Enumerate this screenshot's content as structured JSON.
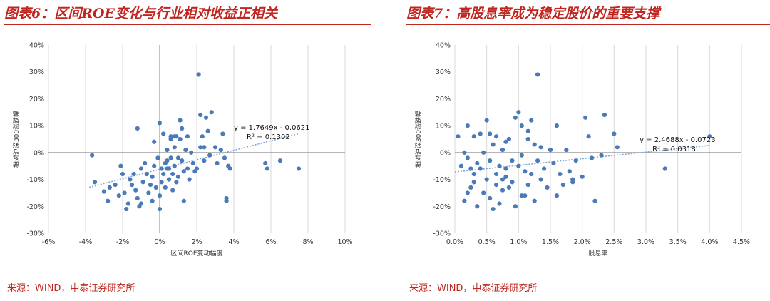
{
  "colors": {
    "accent": "#c0261f",
    "marker": "#4a7ab8",
    "trend": "#7fa6d4",
    "grid": "#d9d9d9"
  },
  "chart_data": [
    {
      "type": "scatter",
      "title": "图表6：区间ROE变化与行业相对收益正相关",
      "xlabel": "区间ROE变动幅度",
      "ylabel": "相对沪深300涨跌幅",
      "xlim": [
        -0.06,
        0.1
      ],
      "ylim": [
        -0.3,
        0.4
      ],
      "xticks": [
        "-6%",
        "-4%",
        "-2%",
        "0%",
        "2%",
        "4%",
        "6%",
        "8%",
        "10%"
      ],
      "yticks": [
        "-30%",
        "-20%",
        "-10%",
        "0%",
        "10%",
        "20%",
        "30%",
        "40%"
      ],
      "xtick_values": [
        -0.06,
        -0.04,
        -0.02,
        0,
        0.02,
        0.04,
        0.06,
        0.08,
        0.1
      ],
      "ytick_values": [
        -0.3,
        -0.2,
        -0.1,
        0,
        0.1,
        0.2,
        0.3,
        0.4
      ],
      "grid": "vertical",
      "trendline": {
        "slope": 1.7649,
        "intercept": -0.0621,
        "x_range": [
          -0.038,
          0.075
        ]
      },
      "equation": "y = 1.7649x - 0.0621",
      "r2": "R² = 0.1302",
      "source": "来源：WIND，中泰证券研究所",
      "points": [
        [
          -0.0365,
          -0.01
        ],
        [
          -0.035,
          -0.11
        ],
        [
          -0.03,
          -0.145
        ],
        [
          -0.028,
          -0.18
        ],
        [
          -0.027,
          -0.13
        ],
        [
          -0.024,
          -0.12
        ],
        [
          -0.022,
          -0.16
        ],
        [
          -0.021,
          -0.05
        ],
        [
          -0.02,
          -0.08
        ],
        [
          -0.019,
          -0.15
        ],
        [
          -0.018,
          -0.21
        ],
        [
          -0.017,
          -0.19
        ],
        [
          -0.016,
          -0.1
        ],
        [
          -0.015,
          -0.12
        ],
        [
          -0.014,
          -0.08
        ],
        [
          -0.013,
          -0.14
        ],
        [
          -0.012,
          -0.17
        ],
        [
          -0.011,
          -0.2
        ],
        [
          -0.01,
          -0.19
        ],
        [
          -0.01,
          -0.06
        ],
        [
          -0.009,
          -0.11
        ],
        [
          -0.008,
          -0.04
        ],
        [
          -0.007,
          -0.08
        ],
        [
          -0.006,
          -0.15
        ],
        [
          -0.005,
          -0.12
        ],
        [
          -0.004,
          -0.09
        ],
        [
          -0.004,
          -0.18
        ],
        [
          -0.003,
          -0.05
        ],
        [
          -0.002,
          -0.13
        ],
        [
          -0.001,
          -0.02
        ],
        [
          0.0,
          -0.16
        ],
        [
          0.0,
          -0.21
        ],
        [
          0.001,
          -0.06
        ],
        [
          0.001,
          -0.11
        ],
        [
          0.002,
          -0.08
        ],
        [
          0.002,
          0.07
        ],
        [
          0.003,
          -0.04
        ],
        [
          0.003,
          -0.13
        ],
        [
          0.004,
          -0.03
        ],
        [
          0.004,
          0.01
        ],
        [
          0.005,
          -0.1
        ],
        [
          0.005,
          -0.06
        ],
        [
          0.006,
          -0.02
        ],
        [
          0.006,
          0.06
        ],
        [
          0.007,
          -0.08
        ],
        [
          0.007,
          -0.14
        ],
        [
          0.008,
          0.02
        ],
        [
          0.008,
          -0.05
        ],
        [
          0.009,
          -0.11
        ],
        [
          0.009,
          0.06
        ],
        [
          0.01,
          -0.02
        ],
        [
          0.01,
          -0.09
        ],
        [
          0.011,
          0.12
        ],
        [
          0.011,
          0.05
        ],
        [
          0.012,
          -0.03
        ],
        [
          0.013,
          -0.07
        ],
        [
          0.013,
          -0.18
        ],
        [
          0.014,
          0.01
        ],
        [
          0.015,
          -0.06
        ],
        [
          0.016,
          -0.1
        ],
        [
          0.017,
          0.0
        ],
        [
          0.018,
          -0.04
        ],
        [
          0.019,
          -0.07
        ],
        [
          0.02,
          -0.06
        ],
        [
          0.021,
          0.29
        ],
        [
          0.022,
          0.02
        ],
        [
          0.023,
          0.06
        ],
        [
          0.024,
          -0.03
        ],
        [
          0.025,
          0.13
        ],
        [
          0.026,
          0.08
        ],
        [
          0.027,
          -0.01
        ],
        [
          0.028,
          0.15
        ],
        [
          0.03,
          0.02
        ],
        [
          0.031,
          -0.04
        ],
        [
          0.033,
          0.01
        ],
        [
          0.034,
          0.07
        ],
        [
          0.035,
          -0.02
        ],
        [
          0.036,
          -0.18
        ],
        [
          0.036,
          -0.17
        ],
        [
          0.037,
          -0.05
        ],
        [
          0.038,
          -0.06
        ],
        [
          0.057,
          -0.04
        ],
        [
          0.058,
          -0.06
        ],
        [
          0.065,
          -0.03
        ],
        [
          0.075,
          -0.06
        ],
        [
          -0.012,
          0.09
        ],
        [
          0.0,
          0.11
        ],
        [
          -0.003,
          0.04
        ],
        [
          0.004,
          -0.06
        ],
        [
          0.015,
          0.06
        ],
        [
          0.012,
          0.09
        ],
        [
          0.022,
          0.14
        ],
        [
          0.024,
          0.02
        ],
        [
          0.008,
          0.06
        ],
        [
          0.006,
          0.05
        ]
      ]
    },
    {
      "type": "scatter",
      "title": "图表7：高股息率成为稳定股价的重要支撑",
      "xlabel": "股息率",
      "ylabel": "相对沪深300涨跌幅",
      "xlim": [
        0,
        0.045
      ],
      "ylim": [
        -0.3,
        0.4
      ],
      "xticks": [
        "0.0%",
        "0.5%",
        "1.0%",
        "1.5%",
        "2.0%",
        "2.5%",
        "3.0%",
        "3.5%",
        "4.0%",
        "4.5%"
      ],
      "yticks": [
        "-30%",
        "-20%",
        "-10%",
        "0%",
        "10%",
        "20%",
        "30%",
        "40%"
      ],
      "xtick_values": [
        0,
        0.005,
        0.01,
        0.015,
        0.02,
        0.025,
        0.03,
        0.035,
        0.04,
        0.045
      ],
      "ytick_values": [
        -0.3,
        -0.2,
        -0.1,
        0,
        0.1,
        0.2,
        0.3,
        0.4
      ],
      "grid": "vertical",
      "trendline": {
        "slope": 2.4688,
        "intercept": -0.0723,
        "x_range": [
          0.0,
          0.04
        ]
      },
      "equation": "y = 2.4688x - 0.0723",
      "r2": "R² = 0.0318",
      "source": "来源：WIND，中泰证券研究所",
      "points": [
        [
          0.0005,
          0.06
        ],
        [
          0.001,
          -0.05
        ],
        [
          0.0015,
          -0.18
        ],
        [
          0.002,
          -0.02
        ],
        [
          0.002,
          0.1
        ],
        [
          0.0025,
          -0.13
        ],
        [
          0.003,
          -0.08
        ],
        [
          0.003,
          0.06
        ],
        [
          0.0035,
          -0.2
        ],
        [
          0.004,
          -0.06
        ],
        [
          0.004,
          0.07
        ],
        [
          0.0045,
          -0.15
        ],
        [
          0.0045,
          0.0
        ],
        [
          0.005,
          -0.1
        ],
        [
          0.005,
          0.12
        ],
        [
          0.0055,
          -0.03
        ],
        [
          0.0055,
          -0.17
        ],
        [
          0.006,
          -0.21
        ],
        [
          0.006,
          0.03
        ],
        [
          0.0065,
          -0.08
        ],
        [
          0.0065,
          -0.12
        ],
        [
          0.007,
          -0.05
        ],
        [
          0.007,
          -0.19
        ],
        [
          0.0075,
          0.01
        ],
        [
          0.0075,
          -0.14
        ],
        [
          0.008,
          -0.06
        ],
        [
          0.008,
          -0.09
        ],
        [
          0.0085,
          0.05
        ],
        [
          0.009,
          -0.11
        ],
        [
          0.009,
          -0.03
        ],
        [
          0.0095,
          -0.2
        ],
        [
          0.0095,
          0.13
        ],
        [
          0.01,
          0.15
        ],
        [
          0.01,
          -0.05
        ],
        [
          0.0105,
          -0.01
        ],
        [
          0.0105,
          0.1
        ],
        [
          0.011,
          -0.07
        ],
        [
          0.011,
          -0.16
        ],
        [
          0.0115,
          0.05
        ],
        [
          0.0115,
          -0.12
        ],
        [
          0.012,
          0.12
        ],
        [
          0.012,
          -0.08
        ],
        [
          0.0125,
          -0.18
        ],
        [
          0.0125,
          0.03
        ],
        [
          0.013,
          0.29
        ],
        [
          0.013,
          -0.03
        ],
        [
          0.0135,
          -0.1
        ],
        [
          0.014,
          -0.06
        ],
        [
          0.0145,
          -0.13
        ],
        [
          0.015,
          0.01
        ],
        [
          0.0155,
          -0.04
        ],
        [
          0.016,
          0.1
        ],
        [
          0.0165,
          -0.08
        ],
        [
          0.017,
          -0.12
        ],
        [
          0.0175,
          0.01
        ],
        [
          0.018,
          -0.07
        ],
        [
          0.0185,
          -0.1
        ],
        [
          0.019,
          -0.03
        ],
        [
          0.02,
          -0.09
        ],
        [
          0.0205,
          0.13
        ],
        [
          0.021,
          0.06
        ],
        [
          0.0215,
          -0.02
        ],
        [
          0.022,
          -0.18
        ],
        [
          0.023,
          -0.01
        ],
        [
          0.0235,
          0.14
        ],
        [
          0.025,
          0.07
        ],
        [
          0.0255,
          0.02
        ],
        [
          0.033,
          -0.06
        ],
        [
          0.04,
          0.06
        ],
        [
          0.0015,
          0.0
        ],
        [
          0.0025,
          -0.06
        ],
        [
          0.0035,
          -0.04
        ],
        [
          0.0055,
          0.07
        ],
        [
          0.0065,
          0.06
        ],
        [
          0.0075,
          -0.1
        ],
        [
          0.0085,
          -0.13
        ],
        [
          0.0105,
          -0.16
        ],
        [
          0.0115,
          0.08
        ],
        [
          0.0135,
          0.02
        ],
        [
          0.016,
          -0.16
        ],
        [
          0.0185,
          -0.11
        ],
        [
          0.002,
          -0.15
        ],
        [
          0.003,
          -0.11
        ],
        [
          0.008,
          0.04
        ]
      ]
    }
  ]
}
